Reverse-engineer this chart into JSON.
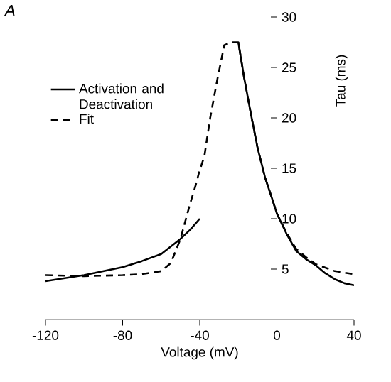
{
  "chart_data": {
    "type": "line",
    "xlabel": "Voltage (mV)",
    "ylabel": "Tau (ms)",
    "annotations": [
      "A"
    ],
    "xlim": [
      -120,
      40
    ],
    "xticks": [
      -120,
      -80,
      -40,
      0,
      40
    ],
    "ylim": [
      0,
      30
    ],
    "yticks": [
      5,
      10,
      15,
      20,
      25,
      30
    ],
    "legend": "top left",
    "series": [
      {
        "name": "Activation and Deactivation",
        "color": "#000000",
        "line_style": "solid",
        "x": [
          -120,
          -110,
          -100,
          -90,
          -80,
          -70,
          -60,
          -50,
          -45,
          -40,
          null,
          -20,
          -17,
          -13.5,
          -10,
          -6,
          -2.5,
          0,
          5,
          10,
          15,
          20,
          25,
          30,
          35,
          40
        ],
        "values": [
          3.8,
          4.1,
          4.4,
          4.8,
          5.2,
          5.8,
          6.5,
          8,
          8.9,
          10,
          null,
          27.5,
          24,
          20.4,
          17,
          14,
          12,
          10.5,
          8.5,
          6.8,
          6,
          5.4,
          4.6,
          4,
          3.6,
          3.4
        ]
      },
      {
        "name": "Fit",
        "color": "#000000",
        "line_style": "dashed",
        "x": [
          -120,
          -100,
          -80,
          -70,
          -60,
          -55,
          -50,
          -45,
          -42,
          -40.5,
          -37.6,
          -34.6,
          -31,
          -27.3,
          -24,
          -20,
          -17,
          -13.5,
          -10,
          -6,
          -2.5,
          0,
          5,
          10,
          15,
          20,
          30,
          40
        ],
        "values": [
          4.4,
          4.3,
          4.4,
          4.5,
          4.8,
          5.6,
          8,
          11.5,
          13.4,
          14.5,
          16.2,
          20,
          23.7,
          27.2,
          27.5,
          27.5,
          24,
          20.4,
          17,
          14,
          12,
          10.5,
          8.6,
          7,
          6.2,
          5.5,
          4.8,
          4.5
        ]
      }
    ]
  }
}
